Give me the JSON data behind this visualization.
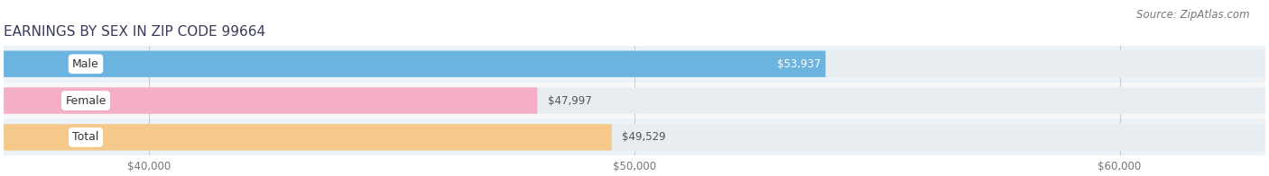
{
  "title": "EARNINGS BY SEX IN ZIP CODE 99664",
  "source": "Source: ZipAtlas.com",
  "categories": [
    "Male",
    "Female",
    "Total"
  ],
  "values": [
    53937,
    47997,
    49529
  ],
  "bar_colors": [
    "#6cb4e0",
    "#f5aec8",
    "#f5c98a"
  ],
  "value_labels": [
    "$53,937",
    "$47,997",
    "$49,529"
  ],
  "bar_bg_color": "#e8edf2",
  "xlim_min": 37000,
  "xlim_max": 63000,
  "xtick_values": [
    40000,
    50000,
    60000
  ],
  "xtick_labels": [
    "$40,000",
    "$50,000",
    "$60,000"
  ],
  "title_fontsize": 11,
  "source_fontsize": 8.5,
  "bar_height": 0.72,
  "background_color": "#ffffff",
  "row_bg_colors": [
    "#eef3f8",
    "#ffffff",
    "#eef3f8"
  ]
}
